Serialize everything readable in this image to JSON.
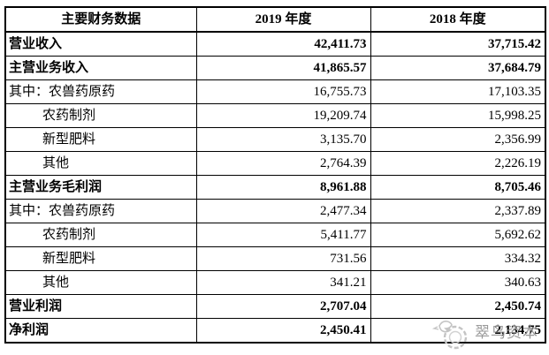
{
  "table": {
    "columns": [
      "主要财务数据",
      "2019 年度",
      "2018 年度"
    ],
    "rows": [
      {
        "label": "营业收入",
        "v2019": "42,411.73",
        "v2018": "37,715.42",
        "bold": true,
        "indent": 0
      },
      {
        "label": "主营业务收入",
        "v2019": "41,865.57",
        "v2018": "37,684.79",
        "bold": true,
        "indent": 0
      },
      {
        "label": "其中：农兽药原药",
        "v2019": "16,755.73",
        "v2018": "17,103.35",
        "bold": false,
        "indent": 0
      },
      {
        "label": "农药制剂",
        "v2019": "19,209.74",
        "v2018": "15,998.25",
        "bold": false,
        "indent": 1
      },
      {
        "label": "新型肥料",
        "v2019": "3,135.70",
        "v2018": "2,356.99",
        "bold": false,
        "indent": 1
      },
      {
        "label": "其他",
        "v2019": "2,764.39",
        "v2018": "2,226.19",
        "bold": false,
        "indent": 1
      },
      {
        "label": "主营业务毛利润",
        "v2019": "8,961.88",
        "v2018": "8,705.46",
        "bold": true,
        "indent": 0
      },
      {
        "label": "其中：农兽药原药",
        "v2019": "2,477.34",
        "v2018": "2,337.89",
        "bold": false,
        "indent": 0
      },
      {
        "label": "农药制剂",
        "v2019": "5,411.77",
        "v2018": "5,692.62",
        "bold": false,
        "indent": 1
      },
      {
        "label": "新型肥料",
        "v2019": "731.56",
        "v2018": "334.32",
        "bold": false,
        "indent": 1
      },
      {
        "label": "其他",
        "v2019": "341.21",
        "v2018": "340.63",
        "bold": false,
        "indent": 1
      },
      {
        "label": "营业利润",
        "v2019": "2,707.04",
        "v2018": "2,450.74",
        "bold": true,
        "indent": 0
      },
      {
        "label": "净利润",
        "v2019": "2,450.41",
        "v2018": "2,134.75",
        "bold": true,
        "indent": 0
      }
    ]
  },
  "watermark": {
    "text": "翠鸟资本",
    "text_color": "#8f8f8f",
    "logo_color": "#c4c4c4"
  },
  "colors": {
    "border": "#000000",
    "background": "#ffffff",
    "text": "#000000"
  }
}
